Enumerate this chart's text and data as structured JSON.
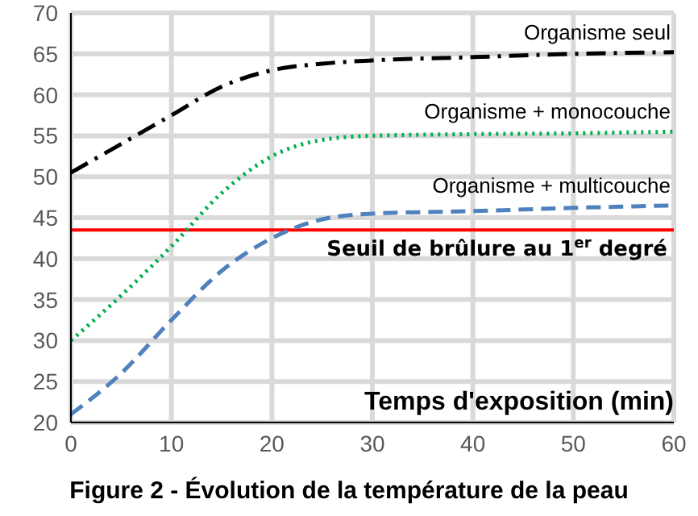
{
  "chart_data": {
    "type": "line",
    "title": "Figure 2 - Évolution de la température de la peau",
    "xlabel": "Temps d'exposition (min)",
    "x": [
      0,
      5,
      10,
      15,
      20,
      25,
      30,
      40,
      50,
      60
    ],
    "series": [
      {
        "name": "Organisme seul",
        "color": "#000000",
        "line_style": "dashdot",
        "values": [
          50.5,
          54,
          57.5,
          61,
          63,
          63.8,
          64.2,
          64.6,
          65,
          65.2
        ]
      },
      {
        "name": "Organisme + monocouche",
        "color": "#00b050",
        "line_style": "dotted",
        "values": [
          30,
          35.5,
          41.5,
          48,
          52.5,
          54.5,
          55,
          55.2,
          55.3,
          55.5
        ]
      },
      {
        "name": "Organisme + multicouche",
        "color": "#4f81bd",
        "line_style": "dashed",
        "values": [
          21,
          26,
          32.5,
          38.5,
          42.5,
          44.8,
          45.5,
          45.8,
          46.2,
          46.5
        ]
      }
    ],
    "ref_lines": [
      {
        "axis": "y",
        "value": 43.5,
        "label": "Seuil de brûlure au 1$^{er}$ degré",
        "color": "#ff0000"
      }
    ],
    "xlim": [
      0,
      60
    ],
    "xticks": [
      0,
      10,
      20,
      30,
      40,
      50,
      60
    ],
    "ylim": [
      20,
      70
    ],
    "yticks": [
      20,
      25,
      30,
      35,
      40,
      45,
      50,
      55,
      60,
      65,
      70
    ],
    "grid": true,
    "marker": "none"
  }
}
